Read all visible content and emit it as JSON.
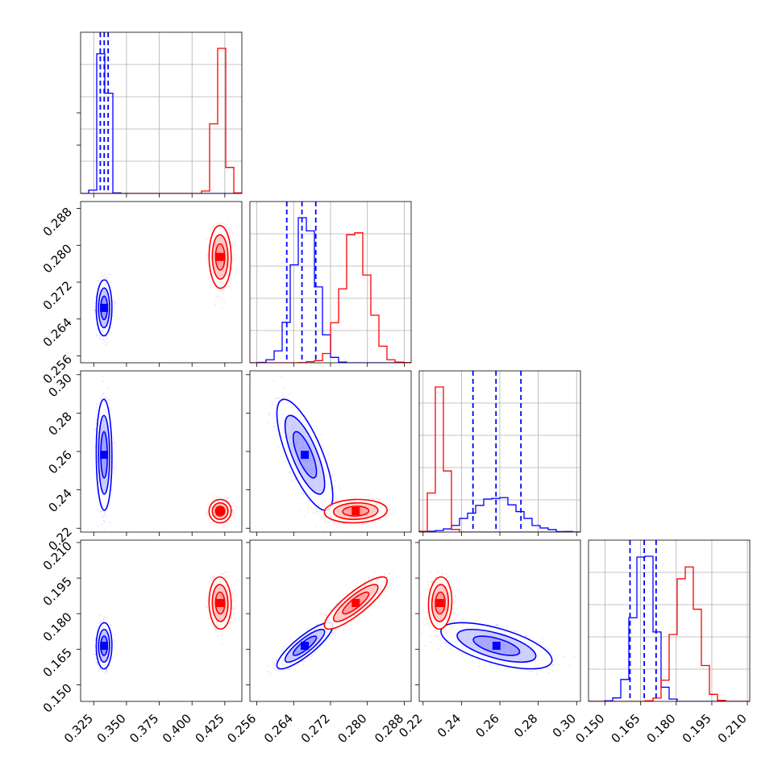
{
  "chart_data": {
    "type": "corner",
    "grid": true,
    "colors": {
      "series_a": "#0000ff",
      "series_b": "#ff0000"
    },
    "params": [
      {
        "range": [
          0.315,
          0.438
        ],
        "ticks": [
          "0.325",
          "0.350",
          "0.375",
          "0.400",
          "0.425"
        ],
        "tick_values": [
          0.325,
          0.35,
          0.375,
          0.4,
          0.425
        ]
      },
      {
        "range": [
          0.2545,
          0.2895
        ],
        "ticks": [
          "0.256",
          "0.264",
          "0.272",
          "0.280",
          "0.288"
        ],
        "tick_values": [
          0.256,
          0.264,
          0.272,
          0.28,
          0.288
        ]
      },
      {
        "range": [
          0.218,
          0.302
        ],
        "ticks": [
          "0.22",
          "0.24",
          "0.26",
          "0.28",
          "0.30"
        ],
        "tick_values": [
          0.22,
          0.24,
          0.26,
          0.28,
          0.3
        ]
      },
      {
        "range": [
          0.143,
          0.211
        ],
        "ticks": [
          "0.150",
          "0.165",
          "0.180",
          "0.195",
          "0.210"
        ],
        "tick_values": [
          0.15,
          0.165,
          0.18,
          0.195,
          0.21
        ]
      }
    ],
    "series_a": {
      "mean": [
        0.333,
        0.2665,
        0.258,
        0.1665
      ],
      "std": [
        0.0025,
        0.0025,
        0.012,
        0.004
      ],
      "quantiles": [
        [
          0.33,
          0.333,
          0.336
        ],
        [
          0.2625,
          0.2658,
          0.2688
        ],
        [
          0.246,
          0.258,
          0.271
        ],
        [
          0.1605,
          0.1665,
          0.1715
        ]
      ],
      "corr": [
        [
          1,
          0.1,
          0.1,
          0.1
        ],
        [
          0.1,
          1,
          -0.75,
          0.85
        ],
        [
          0.1,
          -0.75,
          1,
          -0.8
        ],
        [
          0.1,
          0.85,
          -0.8,
          1
        ]
      ]
    },
    "series_b": {
      "mean": [
        0.4215,
        0.2775,
        0.229,
        0.1845
      ],
      "std": [
        0.0035,
        0.0028,
        0.0025,
        0.0045
      ],
      "corr": [
        [
          1,
          0.5,
          0.1,
          0.5
        ],
        [
          0.5,
          1,
          0.1,
          0.85
        ],
        [
          0.1,
          0.1,
          1,
          0.1
        ],
        [
          0.5,
          0.85,
          0.1,
          1
        ]
      ]
    }
  }
}
